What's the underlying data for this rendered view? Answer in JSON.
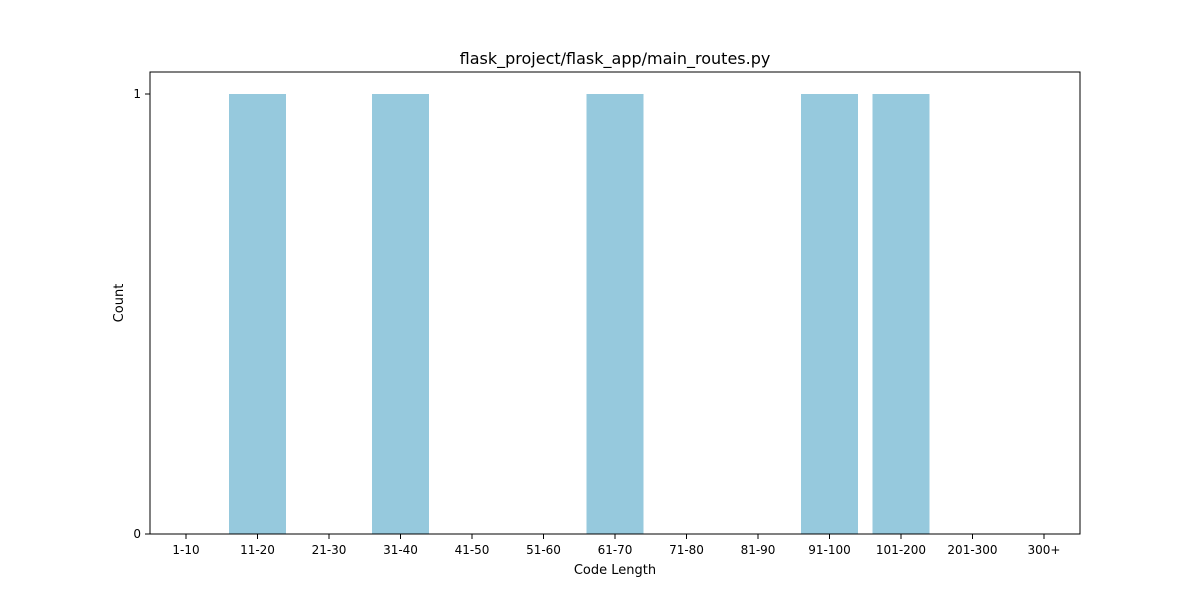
{
  "chart_data": {
    "type": "bar",
    "title": "flask_project/flask_app/main_routes.py",
    "xlabel": "Code Length",
    "ylabel": "Count",
    "categories": [
      "1-10",
      "11-20",
      "21-30",
      "31-40",
      "41-50",
      "51-60",
      "61-70",
      "71-80",
      "81-90",
      "91-100",
      "101-200",
      "201-300",
      "300+"
    ],
    "values": [
      0,
      1,
      0,
      1,
      0,
      0,
      1,
      0,
      0,
      1,
      1,
      0,
      0
    ],
    "ylim": [
      0,
      1.05
    ],
    "yticks": [
      0,
      1
    ],
    "grid": false,
    "legend": "none",
    "bar_color": "#96c9dd"
  }
}
